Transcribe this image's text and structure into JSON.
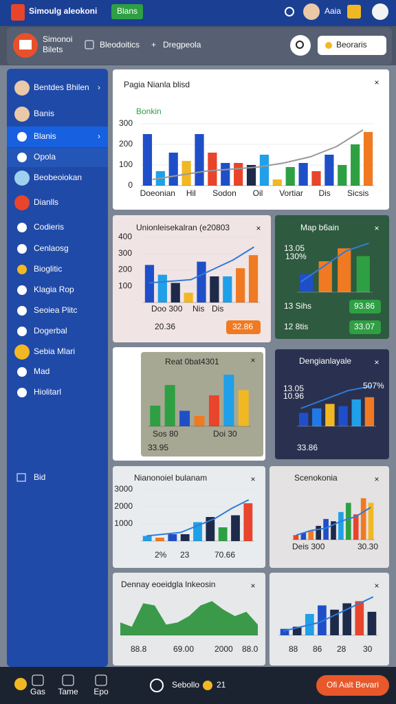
{
  "header": {
    "title": "Simoulg aleokoni",
    "badge": "Blans",
    "user": "Aaia"
  },
  "toolbar": {
    "brand": [
      "Simonoi",
      "Bilets"
    ],
    "tabs": [
      "Bleodoitics",
      "Dregpeola"
    ],
    "search": "Beoraris"
  },
  "sidebar": {
    "items": [
      "Bentdes Bhilen",
      "Banis",
      "Blanis",
      "Opola",
      "Beobeoiokan",
      "Dianlls",
      "Codieris",
      "Cenlaosg",
      "Bioglitic",
      "Klagia Rop",
      "Seoiea Plitc",
      "Dogerbal",
      "Sebia Mlari",
      "Mad",
      "Hiolitarl"
    ],
    "footer": "Bid"
  },
  "cards": [
    {
      "title": "Pagia Nianla blisd",
      "subtitle": "Bonkin",
      "ylim": [
        0,
        300
      ],
      "yticks": [
        0,
        100,
        200,
        300
      ],
      "categories": [
        "Doeonian",
        "Hil",
        "Sodon",
        "Oil",
        "Vortiar",
        "Dis",
        "Sicsis"
      ],
      "values": [
        250,
        70,
        160,
        120,
        250,
        160,
        110,
        110,
        100,
        150,
        30,
        90,
        110,
        70,
        150,
        100,
        200,
        260
      ],
      "colors": [
        "#1f4fc8",
        "#1fa0e8",
        "#1f4fc8",
        "#f2b824",
        "#1f4fc8",
        "#e8452c",
        "#1f4fc8",
        "#e8452c",
        "#1e2a4a",
        "#1fa0e8",
        "#f2b824",
        "#2ea043",
        "#1f4fc8",
        "#e8452c",
        "#1f4fc8",
        "#2ea043",
        "#2ea043",
        "#f07a22"
      ],
      "line": [
        30,
        50,
        70,
        80,
        90,
        110,
        140,
        190,
        270
      ]
    },
    {
      "title": "Unionleisekalran (e20803",
      "ylim": [
        0,
        400
      ],
      "yticks": [
        100,
        200,
        300,
        400
      ],
      "values": [
        230,
        170,
        120,
        60,
        250,
        160,
        160,
        210,
        290
      ],
      "colors": [
        "#1f4fc8",
        "#1fa0e8",
        "#1e2a4a",
        "#f2b824",
        "#1f4fc8",
        "#1e2a4a",
        "#1fa0e8",
        "#f07a22",
        "#f07a22"
      ],
      "line": [
        120,
        130,
        140,
        200,
        260,
        340
      ],
      "texts": [
        "Doo 300",
        "Nis",
        "Dis",
        "20.36",
        "32.86"
      ]
    },
    {
      "title": "Map b6ain",
      "ylim": [
        0,
        100
      ],
      "values": [
        35,
        60,
        85,
        70
      ],
      "colors": [
        "#1f4fc8",
        "#f07a22",
        "#f07a22",
        "#2ea043"
      ],
      "line": [
        20,
        50,
        80,
        95
      ],
      "texts": [
        "13.05",
        "130%",
        "13 Sihs",
        "93.86",
        "12 8tis",
        "33.07"
      ]
    },
    {
      "title": "Reat 0bat4301",
      "ylim": [
        0,
        100
      ],
      "values": [
        40,
        80,
        30,
        20,
        60,
        100,
        70
      ],
      "colors": [
        "#2ea043",
        "#2ea043",
        "#1f4fc8",
        "#f07a22",
        "#e8452c",
        "#1fa0e8",
        "#f2b824"
      ],
      "texts": [
        "Sos 80",
        "Doi 30",
        "33.95"
      ]
    },
    {
      "title": "Dengianlayale",
      "ylim": [
        0,
        100
      ],
      "values": [
        30,
        40,
        50,
        45,
        60,
        65
      ],
      "colors": [
        "#1f4fc8",
        "#1f7ae8",
        "#f2b824",
        "#1f4fc8",
        "#1fa0e8",
        "#f07a22"
      ],
      "line": [
        40,
        60,
        80,
        90
      ],
      "texts": [
        "13.05",
        "10.96",
        "507%",
        "33.86"
      ]
    },
    {
      "title": "Nianonoiel bulanam",
      "ylim": [
        0,
        3000
      ],
      "yticks": [
        1000,
        2000,
        3000
      ],
      "values": [
        300,
        200,
        400,
        400,
        1100,
        1400,
        800,
        1500,
        2200
      ],
      "colors": [
        "#1fa0e8",
        "#f07a22",
        "#1f4fc8",
        "#1e2a4a",
        "#1fa0e8",
        "#1e2a4a",
        "#2ea043",
        "#1e2a4a",
        "#e8452c"
      ],
      "line": [
        300,
        400,
        500,
        900,
        1300,
        1900,
        2400
      ],
      "texts": [
        "2%",
        "23",
        "70.66"
      ]
    },
    {
      "title": "Scenokonia",
      "ylim": [
        0,
        100
      ],
      "values": [
        10,
        15,
        20,
        30,
        45,
        40,
        60,
        80,
        55,
        90,
        80
      ],
      "colors": [
        "#e8452c",
        "#1f4fc8",
        "#f07a22",
        "#1e2a4a",
        "#1f4fc8",
        "#1e2a4a",
        "#1fa0e8",
        "#2ea043",
        "#e8452c",
        "#f07a22",
        "#f2b824"
      ],
      "line": [
        10,
        20,
        25,
        40,
        50,
        70
      ],
      "texts": [
        "Deis 300",
        "30.30"
      ]
    },
    {
      "title": "Dennay eoeidgla lnkeosin",
      "ylim": [
        0,
        100
      ],
      "area": [
        30,
        20,
        75,
        70,
        25,
        30,
        45,
        70,
        80,
        60,
        45,
        55,
        25
      ],
      "area_color": "#3a9a4a",
      "texts": [
        "88.8",
        "69.00",
        "2000",
        "88.0"
      ]
    },
    {
      "title": "",
      "ylim": [
        0,
        100
      ],
      "values": [
        15,
        20,
        50,
        70,
        60,
        75,
        80,
        55
      ],
      "colors": [
        "#1f4fc8",
        "#1e2a4a",
        "#1fa0e8",
        "#1f4fc8",
        "#1e2a4a",
        "#1e2a4a",
        "#e8452c",
        "#1e2a4a"
      ],
      "line": [
        10,
        20,
        30,
        50,
        70,
        90
      ],
      "texts": [
        "88",
        "86",
        "28",
        "30"
      ]
    }
  ],
  "bottom": {
    "items": [
      "Gas",
      "Tame",
      "Epo"
    ],
    "center": "Sebollo",
    "count": "21",
    "action": "Ofi Aalt Bevari"
  }
}
